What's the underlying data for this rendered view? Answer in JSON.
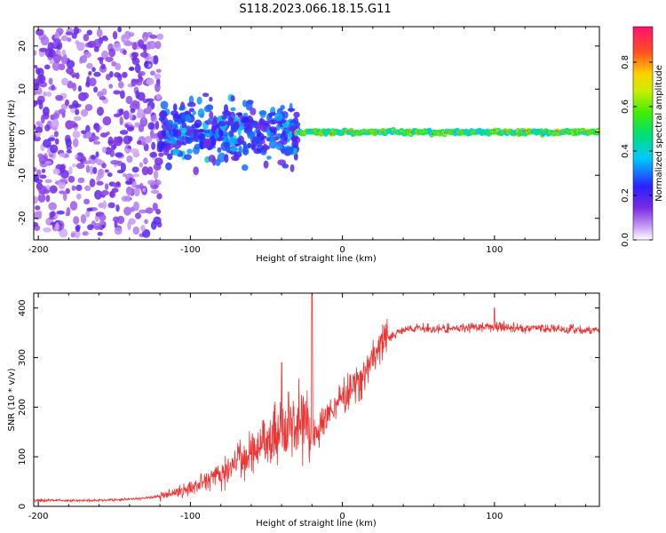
{
  "title": "S118.2023.066.18.15.G11",
  "colors": {
    "snr_line": "#ee3333",
    "axis": "#000000",
    "scatter_base": "#7a2be0"
  },
  "chart_data": [
    {
      "type": "heatmap",
      "xlabel": "Height of straight line (km)",
      "ylabel": "Frequency (Hz)",
      "xlim": [
        -203,
        169
      ],
      "ylim": [
        -25,
        24.5
      ],
      "xticks": [
        -200,
        -100,
        0,
        100
      ],
      "yticks": [
        -20,
        -10,
        0,
        10,
        20
      ],
      "colorbar": {
        "label": "Normalized spectral amplitude",
        "range": [
          0,
          0.96
        ],
        "ticks": [
          0.0,
          0.2,
          0.4,
          0.6,
          0.8
        ]
      },
      "description_regions": [
        {
          "x_range": [
            -203,
            -120
          ],
          "freq_spread": 24,
          "amplitude": [
            0.05,
            0.2
          ]
        },
        {
          "x_range": [
            -120,
            -30
          ],
          "freq_spread": 10,
          "amplitude": [
            0.15,
            0.35
          ]
        },
        {
          "x_range": [
            -30,
            169
          ],
          "freq_center": 0,
          "amplitude": [
            0.4,
            0.96
          ]
        }
      ]
    },
    {
      "type": "line",
      "xlabel": "Height of straight line (km)",
      "ylabel": "SNR (10 * v/v)",
      "xlim": [
        -203,
        169
      ],
      "ylim": [
        0,
        430
      ],
      "xticks": [
        -200,
        -100,
        0,
        100
      ],
      "yticks": [
        0,
        100,
        200,
        300,
        400
      ],
      "series": [
        {
          "x": [
            -203,
            -180,
            -160,
            -140,
            -120,
            -110,
            -100,
            -90,
            -80,
            -70,
            -60,
            -50,
            -40,
            -30,
            -25,
            -20,
            -15,
            -10,
            -5,
            0,
            5,
            10,
            15,
            20,
            25,
            30,
            40,
            50,
            60,
            80,
            100,
            120,
            140,
            160,
            169
          ],
          "values": [
            12,
            12,
            12,
            14,
            20,
            28,
            38,
            50,
            65,
            85,
            110,
            140,
            160,
            170,
            180,
            140,
            160,
            190,
            200,
            215,
            230,
            250,
            270,
            300,
            325,
            340,
            355,
            360,
            358,
            360,
            362,
            360,
            358,
            355,
            355
          ]
        }
      ],
      "spikes": [
        {
          "x": -20,
          "value": 425
        },
        {
          "x": -40,
          "value": 290
        },
        {
          "x": 100,
          "value": 400
        }
      ]
    }
  ]
}
